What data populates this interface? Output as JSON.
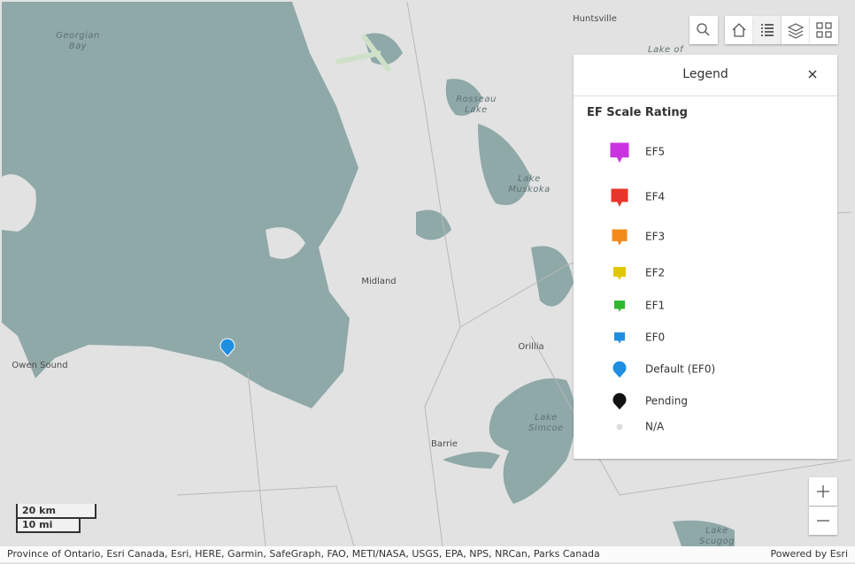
{
  "map": {
    "labels": [
      {
        "lines": [
          "Georgian",
          "Bay"
        ],
        "kind": "water"
      },
      {
        "lines": [
          "Huntsville"
        ],
        "kind": "town"
      },
      {
        "lines": [
          "Lake of"
        ],
        "kind": "water"
      },
      {
        "lines": [
          "Rosseau",
          "Lake"
        ],
        "kind": "water"
      },
      {
        "lines": [
          "Lake",
          "Muskoka"
        ],
        "kind": "water"
      },
      {
        "lines": [
          "Midland"
        ],
        "kind": "town"
      },
      {
        "lines": [
          "Orillia"
        ],
        "kind": "town"
      },
      {
        "lines": [
          "Owen Sound"
        ],
        "kind": "town"
      },
      {
        "lines": [
          "Barrie"
        ],
        "kind": "town"
      },
      {
        "lines": [
          "Lake",
          "Simcoe"
        ],
        "kind": "water"
      },
      {
        "lines": [
          "Lake",
          "Scugog"
        ],
        "kind": "water"
      }
    ],
    "scale": {
      "metric": "20 km",
      "imperial": "10 mi"
    },
    "attribution": "Province of Ontario, Esri Canada, Esri, HERE, Garmin, SafeGraph, FAO, METI/NASA, USGS, EPA, NPS, NRCan, Parks Canada",
    "powered_by": "Powered by Esri"
  },
  "legend": {
    "title": "Legend",
    "section": "EF Scale Rating",
    "items": [
      {
        "label": "EF5",
        "color": "#c934e0",
        "shape": "square"
      },
      {
        "label": "EF4",
        "color": "#e8352b",
        "shape": "square"
      },
      {
        "label": "EF3",
        "color": "#f28a1c",
        "shape": "square"
      },
      {
        "label": "EF2",
        "color": "#e0c800",
        "shape": "square"
      },
      {
        "label": "EF1",
        "color": "#2db82d",
        "shape": "square"
      },
      {
        "label": "EF0",
        "color": "#1e8fe0",
        "shape": "square"
      },
      {
        "label": "Default (EF0)",
        "color": "#1e8fe0",
        "shape": "round"
      },
      {
        "label": "Pending",
        "color": "#111111",
        "shape": "round"
      },
      {
        "label": "N/A",
        "color": "#dddddd",
        "shape": "dot"
      }
    ]
  }
}
